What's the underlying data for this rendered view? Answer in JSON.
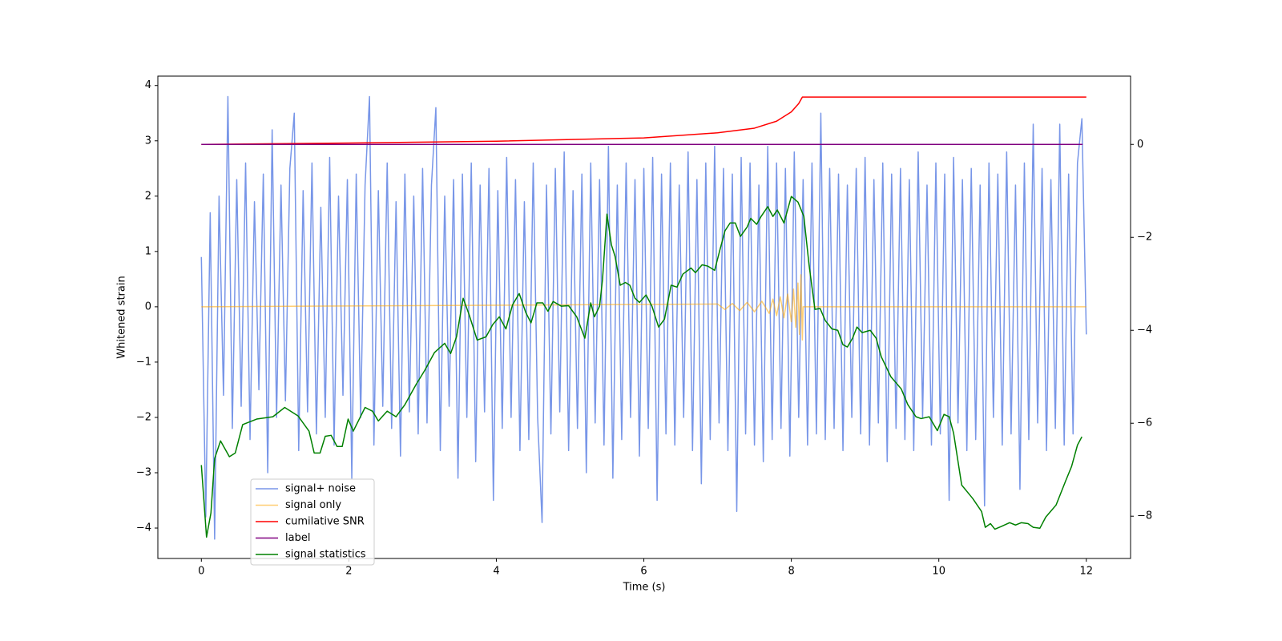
{
  "chart_data": {
    "type": "line",
    "xlabel": "Time (s)",
    "ylabel": "Whitened strain",
    "xlim": [
      -0.59,
      12.6
    ],
    "ylim": [
      -4.55,
      4.17
    ],
    "y2lim": [
      -8.91,
      1.47
    ],
    "xticks": [
      0,
      2,
      4,
      6,
      8,
      10,
      12
    ],
    "yticks": [
      {
        "value": -4,
        "label": "−4"
      },
      {
        "value": -3,
        "label": "−3"
      },
      {
        "value": -2,
        "label": "−2"
      },
      {
        "value": -1,
        "label": "−1"
      },
      0,
      1,
      2,
      3,
      4
    ],
    "y2ticks": [
      {
        "value": -8,
        "label": "−8"
      },
      {
        "value": -6,
        "label": "−6"
      },
      {
        "value": -4,
        "label": "−4"
      },
      {
        "value": -2,
        "label": "−2"
      },
      0
    ],
    "series": [
      {
        "name": "signal+ noise",
        "color": "#7896e8",
        "axis": "y",
        "x": [
          0,
          0.06,
          0.12,
          0.18,
          0.24,
          0.3,
          0.36,
          0.42,
          0.48,
          0.54,
          0.6,
          0.66,
          0.72,
          0.78,
          0.84,
          0.9,
          0.96,
          1.02,
          1.08,
          1.14,
          1.2,
          1.26,
          1.32,
          1.38,
          1.44,
          1.5,
          1.56,
          1.62,
          1.68,
          1.74,
          1.8,
          1.86,
          1.92,
          1.98,
          2.04,
          2.1,
          2.16,
          2.22,
          2.28,
          2.34,
          2.4,
          2.46,
          2.52,
          2.58,
          2.64,
          2.7,
          2.76,
          2.82,
          2.88,
          2.94,
          3,
          3.06,
          3.12,
          3.18,
          3.24,
          3.3,
          3.36,
          3.42,
          3.48,
          3.54,
          3.6,
          3.66,
          3.72,
          3.78,
          3.84,
          3.9,
          3.96,
          4.02,
          4.08,
          4.14,
          4.2,
          4.26,
          4.32,
          4.38,
          4.44,
          4.5,
          4.56,
          4.62,
          4.68,
          4.74,
          4.8,
          4.86,
          4.92,
          4.98,
          5.04,
          5.1,
          5.16,
          5.22,
          5.28,
          5.34,
          5.4,
          5.46,
          5.52,
          5.58,
          5.64,
          5.7,
          5.76,
          5.82,
          5.88,
          5.94,
          6,
          6.06,
          6.12,
          6.18,
          6.24,
          6.3,
          6.36,
          6.42,
          6.48,
          6.54,
          6.6,
          6.66,
          6.72,
          6.78,
          6.84,
          6.9,
          6.96,
          7.02,
          7.08,
          7.14,
          7.2,
          7.26,
          7.32,
          7.38,
          7.44,
          7.5,
          7.56,
          7.62,
          7.68,
          7.74,
          7.8,
          7.86,
          7.92,
          7.98,
          8.04,
          8.1,
          8.16,
          8.22,
          8.28,
          8.34,
          8.4,
          8.46,
          8.52,
          8.58,
          8.64,
          8.7,
          8.76,
          8.82,
          8.88,
          8.94,
          9,
          9.06,
          9.12,
          9.18,
          9.24,
          9.3,
          9.36,
          9.42,
          9.48,
          9.54,
          9.6,
          9.66,
          9.72,
          9.78,
          9.84,
          9.9,
          9.96,
          10.02,
          10.08,
          10.14,
          10.2,
          10.26,
          10.32,
          10.38,
          10.44,
          10.5,
          10.56,
          10.62,
          10.68,
          10.74,
          10.8,
          10.86,
          10.92,
          10.98,
          11.04,
          11.1,
          11.16,
          11.22,
          11.28,
          11.34,
          11.4,
          11.46,
          11.52,
          11.58,
          11.64,
          11.7,
          11.76,
          11.82,
          11.88,
          11.94,
          12
        ],
        "values": [
          0.9,
          -3.8,
          1.7,
          -4.2,
          2.0,
          -1.6,
          3.8,
          -2.2,
          2.3,
          -1.8,
          2.6,
          -2.4,
          1.9,
          -1.5,
          2.4,
          -3.0,
          3.2,
          -2.0,
          2.2,
          -1.7,
          2.5,
          3.5,
          -2.6,
          2.1,
          -1.9,
          2.6,
          -2.3,
          1.8,
          -2.0,
          2.7,
          -2.5,
          2.0,
          -1.6,
          2.3,
          -3.1,
          2.4,
          -2.0,
          2.2,
          3.8,
          -2.5,
          2.1,
          -1.8,
          2.6,
          -2.2,
          1.9,
          -2.7,
          2.4,
          -1.9,
          2.0,
          -2.3,
          2.5,
          -2.1,
          2.2,
          3.6,
          -2.6,
          2.0,
          -1.8,
          2.3,
          -3.1,
          2.4,
          -2.0,
          2.6,
          -2.8,
          2.2,
          -1.9,
          2.5,
          -3.5,
          2.1,
          -2.2,
          2.7,
          -2.0,
          2.3,
          -2.6,
          1.9,
          -2.4,
          2.6,
          -2.0,
          -3.9,
          2.2,
          -2.3,
          2.5,
          -1.9,
          2.8,
          -2.6,
          2.1,
          -2.2,
          2.4,
          -3.0,
          2.6,
          -2.1,
          2.3,
          -2.5,
          2.9,
          -3.1,
          2.2,
          -2.4,
          2.6,
          -2.0,
          2.3,
          -2.7,
          2.5,
          -2.2,
          2.7,
          -3.5,
          2.4,
          -2.3,
          2.6,
          -2.5,
          2.2,
          -2.0,
          2.8,
          -2.6,
          2.3,
          -3.2,
          2.6,
          -2.4,
          2.9,
          -2.1,
          2.5,
          -2.6,
          2.4,
          -3.7,
          2.7,
          -2.3,
          2.6,
          -2.5,
          2.2,
          -2.8,
          2.9,
          -2.4,
          2.6,
          -2.2,
          2.5,
          -2.7,
          2.8,
          -2.0,
          2.3,
          -2.5,
          2.6,
          -2.3,
          3.5,
          -2.4,
          2.5,
          -2.2,
          2.4,
          -2.6,
          2.2,
          -2.0,
          2.5,
          -2.3,
          2.7,
          -2.5,
          2.3,
          -2.1,
          2.6,
          -2.8,
          2.4,
          -2.2,
          2.5,
          -2.4,
          2.3,
          -2.6,
          2.8,
          -2.0,
          2.2,
          -2.5,
          2.6,
          -2.3,
          2.4,
          -3.5,
          2.7,
          -2.1,
          2.3,
          -2.6,
          2.5,
          -2.4,
          2.2,
          -3.6,
          2.6,
          -2.0,
          2.4,
          -2.5,
          2.8,
          -2.3,
          2.2,
          -3.3,
          2.6,
          -2.4,
          3.3,
          -2.1,
          2.5,
          -2.6,
          2.3,
          -2.2,
          3.3,
          -2.5,
          2.4,
          -2.3,
          2.6,
          3.4,
          -0.5
        ]
      },
      {
        "name": "signal only",
        "color": "orange",
        "axis": "y",
        "x": [
          0,
          7.0,
          7.1,
          7.2,
          7.3,
          7.4,
          7.5,
          7.6,
          7.7,
          7.75,
          7.8,
          7.85,
          7.9,
          7.95,
          8.0,
          8.03,
          8.06,
          8.09,
          8.11,
          8.13,
          8.15,
          8.16,
          12
        ],
        "values": [
          0,
          0.05,
          -0.05,
          0.06,
          -0.07,
          0.08,
          -0.09,
          0.1,
          -0.12,
          0.14,
          -0.16,
          0.18,
          -0.2,
          0.23,
          -0.27,
          0.32,
          -0.37,
          0.43,
          -0.5,
          0.58,
          -0.6,
          0,
          0
        ]
      },
      {
        "name": "cumilative SNR",
        "color": "red",
        "axis": "y2",
        "x": [
          0,
          2,
          4,
          6,
          7,
          7.5,
          7.8,
          8.0,
          8.1,
          8.15,
          12
        ],
        "values": [
          0,
          0.03,
          0.07,
          0.14,
          0.25,
          0.35,
          0.5,
          0.7,
          0.88,
          1.02,
          1.02
        ]
      },
      {
        "name": "label",
        "color": "purple",
        "axis": "y2",
        "x": [
          0,
          11.95
        ],
        "values": [
          0,
          0
        ]
      },
      {
        "name": "signal statistics",
        "color": "green",
        "axis": "y2",
        "x": [
          0,
          0.07,
          0.13,
          0.18,
          0.26,
          0.38,
          0.46,
          0.56,
          0.75,
          0.97,
          1.13,
          1.31,
          1.46,
          1.53,
          1.61,
          1.68,
          1.76,
          1.84,
          1.91,
          1.99,
          2.06,
          2.22,
          2.32,
          2.4,
          2.52,
          2.64,
          2.76,
          2.91,
          3.03,
          3.16,
          3.3,
          3.38,
          3.46,
          3.55,
          3.63,
          3.74,
          3.86,
          3.95,
          4.04,
          4.13,
          4.22,
          4.31,
          4.4,
          4.47,
          4.55,
          4.63,
          4.7,
          4.77,
          4.88,
          4.98,
          5.09,
          5.2,
          5.28,
          5.33,
          5.4,
          5.44,
          5.5,
          5.56,
          5.61,
          5.68,
          5.75,
          5.81,
          5.88,
          5.94,
          6.03,
          6.11,
          6.2,
          6.28,
          6.37,
          6.45,
          6.53,
          6.64,
          6.7,
          6.79,
          6.87,
          6.96,
          7.03,
          7.1,
          7.17,
          7.24,
          7.31,
          7.4,
          7.45,
          7.53,
          7.59,
          7.68,
          7.75,
          7.81,
          7.9,
          8.0,
          8.09,
          8.17,
          8.24,
          8.32,
          8.39,
          8.46,
          8.55,
          8.63,
          8.7,
          8.76,
          8.83,
          8.89,
          8.96,
          9.07,
          9.15,
          9.22,
          9.35,
          9.49,
          9.58,
          9.69,
          9.76,
          9.87,
          9.98,
          10.07,
          10.14,
          10.2,
          10.31,
          10.46,
          10.58,
          10.63,
          10.7,
          10.76,
          10.85,
          10.96,
          11.04,
          11.12,
          11.21,
          11.28,
          11.37,
          11.45,
          11.59,
          11.72,
          11.8,
          11.88,
          11.94
        ],
        "values": [
          -6.9,
          -8.45,
          -7.93,
          -6.76,
          -6.38,
          -6.72,
          -6.64,
          -6.03,
          -5.91,
          -5.86,
          -5.66,
          -5.84,
          -6.17,
          -6.64,
          -6.64,
          -6.28,
          -6.26,
          -6.5,
          -6.5,
          -5.91,
          -6.17,
          -5.66,
          -5.74,
          -5.95,
          -5.74,
          -5.86,
          -5.6,
          -5.17,
          -4.86,
          -4.48,
          -4.28,
          -4.5,
          -4.14,
          -3.31,
          -3.66,
          -4.21,
          -4.14,
          -3.88,
          -3.71,
          -3.97,
          -3.45,
          -3.21,
          -3.62,
          -3.84,
          -3.41,
          -3.41,
          -3.59,
          -3.38,
          -3.48,
          -3.47,
          -3.71,
          -4.17,
          -3.41,
          -3.71,
          -3.48,
          -2.9,
          -1.5,
          -2.16,
          -2.41,
          -3.03,
          -2.97,
          -3.03,
          -3.31,
          -3.4,
          -3.24,
          -3.48,
          -3.93,
          -3.76,
          -3.03,
          -3.07,
          -2.79,
          -2.66,
          -2.76,
          -2.59,
          -2.62,
          -2.71,
          -2.28,
          -1.86,
          -1.69,
          -1.69,
          -1.98,
          -1.78,
          -1.59,
          -1.72,
          -1.55,
          -1.34,
          -1.55,
          -1.41,
          -1.69,
          -1.12,
          -1.24,
          -1.55,
          -2.59,
          -3.55,
          -3.53,
          -3.79,
          -3.97,
          -4.0,
          -4.31,
          -4.36,
          -4.17,
          -3.93,
          -4.05,
          -4.0,
          -4.17,
          -4.57,
          -5.0,
          -5.26,
          -5.6,
          -5.86,
          -5.9,
          -5.86,
          -6.16,
          -5.81,
          -5.86,
          -6.21,
          -7.33,
          -7.62,
          -7.9,
          -8.24,
          -8.16,
          -8.28,
          -8.22,
          -8.14,
          -8.19,
          -8.14,
          -8.16,
          -8.24,
          -8.26,
          -8.02,
          -7.76,
          -7.24,
          -6.93,
          -6.47,
          -6.29
        ]
      }
    ]
  }
}
